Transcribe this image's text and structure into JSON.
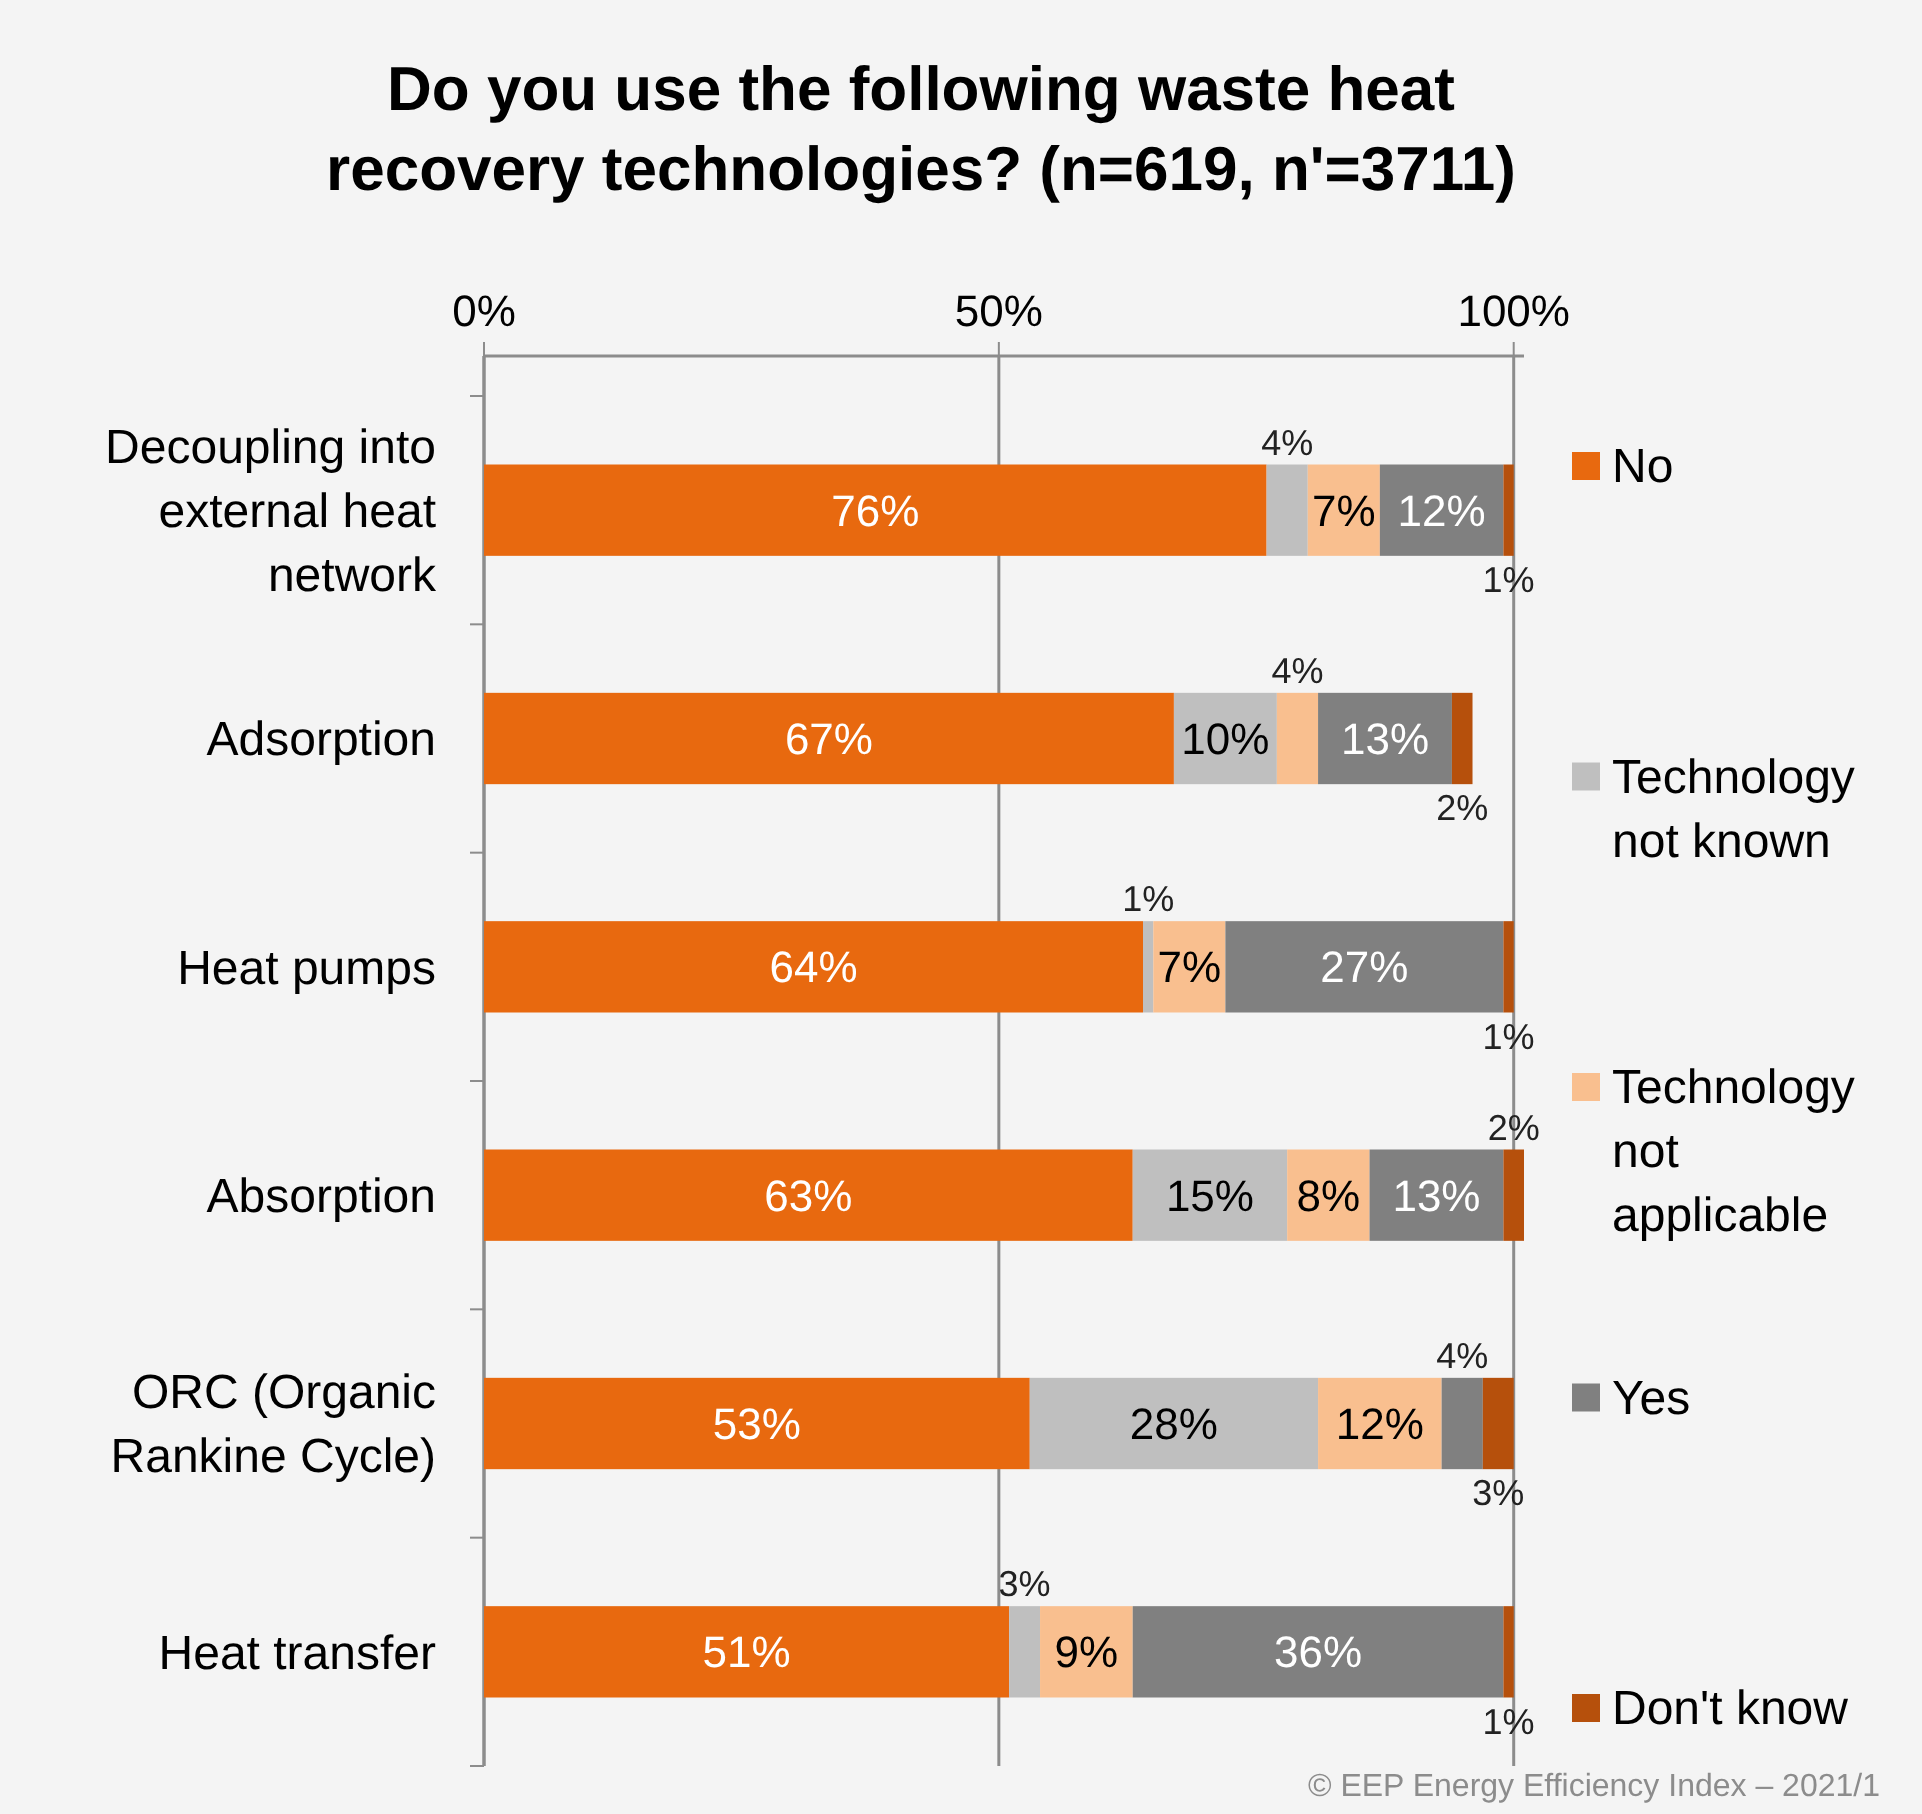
{
  "chart_data": {
    "type": "bar",
    "orientation": "horizontal",
    "stacked": true,
    "title": "Do you use the following waste heat recovery technologies? (n=619, n'=3711)",
    "categories": [
      "Decoupling into external heat network",
      "Adsorption",
      "Heat pumps",
      "Absorption",
      "ORC (Organic Rankine Cycle)",
      "Heat transfer"
    ],
    "series": [
      {
        "name": "No",
        "color": "#e8690f",
        "values": [
          76,
          67,
          64,
          63,
          53,
          51
        ],
        "value_labels": [
          "76%",
          "67%",
          "64%",
          "63%",
          "53%",
          "51%"
        ]
      },
      {
        "name": "Technology not known",
        "color": "#bfbfbf",
        "values": [
          4,
          10,
          1,
          15,
          28,
          3
        ],
        "value_labels": [
          "4%",
          "10%",
          "1%",
          "15%",
          "28%",
          "3%"
        ]
      },
      {
        "name": "Technology not applicable",
        "color": "#f9bf8f",
        "values": [
          7,
          4,
          7,
          8,
          12,
          9
        ],
        "value_labels": [
          "7%",
          "4%",
          "7%",
          "8%",
          "12%",
          "9%"
        ]
      },
      {
        "name": "Yes",
        "color": "#808080",
        "values": [
          12,
          13,
          27,
          13,
          4,
          36
        ],
        "value_labels": [
          "12%",
          "13%",
          "27%",
          "13%",
          "4%",
          "36%"
        ]
      },
      {
        "name": "Don't know",
        "color": "#b6500c",
        "values": [
          1,
          2,
          1,
          2,
          3,
          1
        ],
        "value_labels": [
          "1%",
          "2%",
          "1%",
          "2%",
          "3%",
          "1%"
        ]
      }
    ],
    "xlim": [
      0,
      101
    ],
    "xticks": [
      {
        "value": 0,
        "label": "0%"
      },
      {
        "value": 50,
        "label": "50%"
      },
      {
        "value": 100,
        "label": "100%"
      }
    ],
    "grid": "x",
    "legend": "right",
    "annotations": [
      "© EEP Energy Efficiency Index – 2021/1"
    ]
  }
}
